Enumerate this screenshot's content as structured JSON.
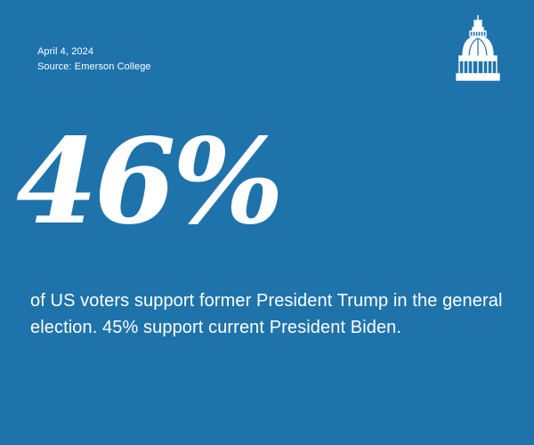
{
  "card": {
    "date": "April 4, 2024",
    "source": "Source: Emerson College",
    "stat": "46%",
    "description": "of US voters support former President Trump in the general election. 45% support current President Biden.",
    "logo_icon": "capitol-dome-icon"
  },
  "colors": {
    "background": "#1f73ab",
    "text": "#ffffff"
  }
}
